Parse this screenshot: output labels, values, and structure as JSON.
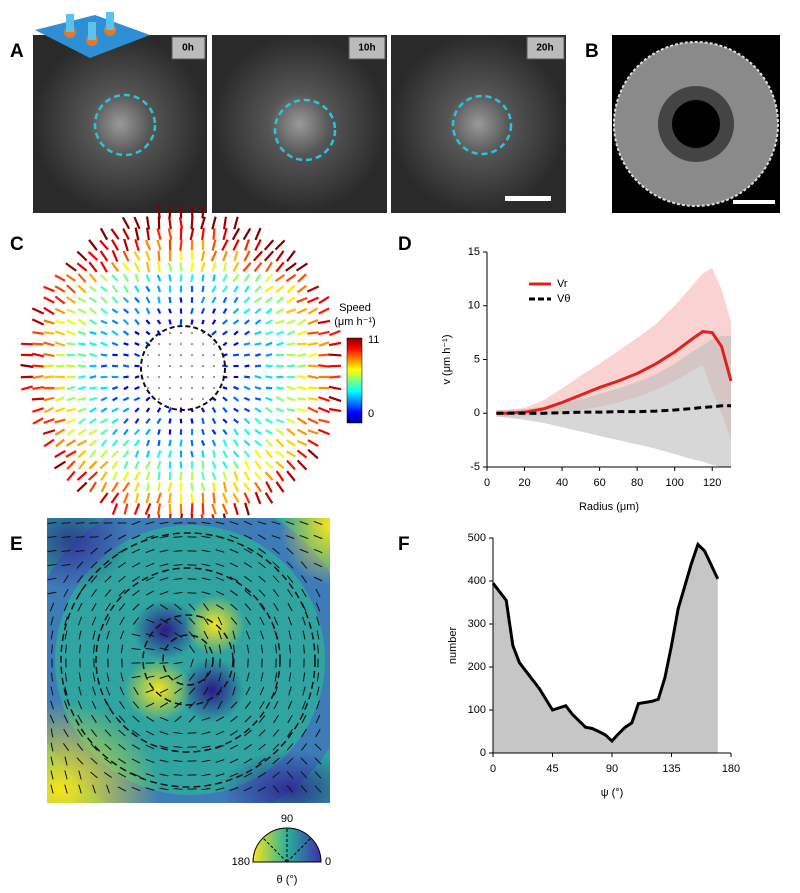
{
  "panels": {
    "labels": [
      "A",
      "B",
      "C",
      "D",
      "E",
      "F"
    ]
  },
  "panel_a": {
    "time_labels": [
      "0h",
      "10h",
      "20h"
    ]
  },
  "panel_c": {
    "colorbar_title": "Speed",
    "colorbar_unit": "(μm h⁻¹)",
    "colorbar_max": 11,
    "colorbar_min": 0
  },
  "panel_e": {
    "legend_top": 90,
    "legend_left": 180,
    "legend_right": 0,
    "legend_label": "θ (°)"
  },
  "chart_data": [
    {
      "type": "line",
      "x": [
        5,
        10,
        20,
        30,
        40,
        50,
        60,
        70,
        80,
        90,
        100,
        110,
        115,
        120,
        125,
        130
      ],
      "series": [
        {
          "name": "Vr",
          "color": "#e3201b",
          "band_color": "#f5b5b3",
          "dash": false,
          "values": [
            0,
            0,
            0.1,
            0.4,
            1.0,
            1.7,
            2.4,
            3.0,
            3.7,
            4.6,
            5.7,
            7.0,
            7.6,
            7.5,
            6.2,
            3.0
          ],
          "upper": [
            0.3,
            0.3,
            0.5,
            1.2,
            2.3,
            3.5,
            4.6,
            5.8,
            7.0,
            8.3,
            10.0,
            12.0,
            13.0,
            13.5,
            11.5,
            8.5
          ],
          "lower": [
            -0.3,
            -0.3,
            -0.3,
            -0.2,
            0,
            0.3,
            0.6,
            1.0,
            1.5,
            2.2,
            3.0,
            4.0,
            4.5,
            2.0,
            0,
            -2.5
          ]
        },
        {
          "name": "Vθ",
          "color": "#000000",
          "band_color": "#bdbdbd",
          "dash": true,
          "values": [
            0,
            0,
            0,
            0,
            0.05,
            0.1,
            0.1,
            0.15,
            0.15,
            0.2,
            0.3,
            0.45,
            0.55,
            0.6,
            0.7,
            0.7
          ],
          "upper": [
            0.3,
            0.3,
            0.4,
            0.6,
            0.9,
            1.3,
            1.8,
            2.3,
            2.9,
            3.6,
            4.6,
            5.8,
            6.3,
            6.9,
            7.2,
            7.2
          ],
          "lower": [
            -0.3,
            -0.4,
            -0.6,
            -0.9,
            -1.3,
            -1.7,
            -2.1,
            -2.5,
            -2.9,
            -3.3,
            -3.8,
            -4.3,
            -4.5,
            -4.8,
            -5,
            -5
          ]
        }
      ],
      "xlim": [
        0,
        130
      ],
      "ylim": [
        -5,
        15
      ],
      "xticks": [
        0,
        20,
        40,
        60,
        80,
        100,
        120
      ],
      "yticks": [
        -5,
        0,
        5,
        10,
        15
      ],
      "xlabel": "Radius (μm)",
      "ylabel": "v (μm h⁻¹)"
    },
    {
      "type": "area",
      "x": [
        0,
        10,
        15,
        20,
        30,
        35,
        40,
        45,
        55,
        60,
        70,
        75,
        80,
        85,
        90,
        95,
        100,
        105,
        110,
        120,
        125,
        130,
        135,
        140,
        150,
        155,
        160,
        170
      ],
      "values": [
        395,
        355,
        250,
        210,
        170,
        150,
        125,
        100,
        110,
        90,
        60,
        57,
        50,
        42,
        28,
        45,
        60,
        70,
        115,
        120,
        125,
        175,
        250,
        335,
        440,
        485,
        470,
        405
      ],
      "color": "#000000",
      "fill": "#c6c6c6",
      "xlim": [
        0,
        180
      ],
      "ylim": [
        0,
        500
      ],
      "xticks": [
        0,
        45,
        90,
        135,
        180
      ],
      "yticks": [
        0,
        100,
        200,
        300,
        400,
        500
      ],
      "xlabel": "ψ (°)",
      "ylabel": "number"
    }
  ]
}
